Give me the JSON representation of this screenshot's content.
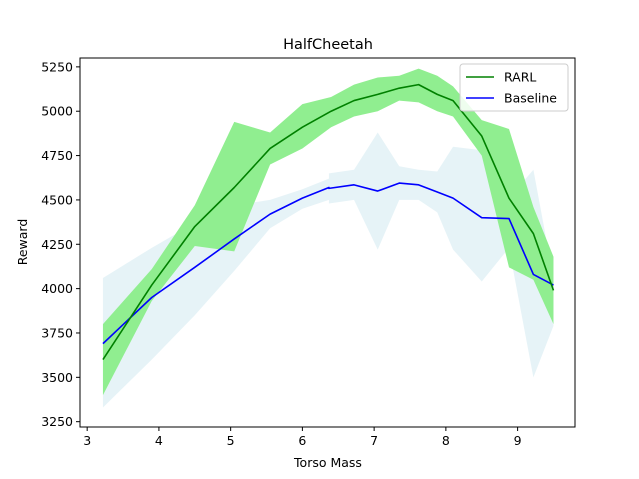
{
  "chart_data": {
    "type": "line",
    "title": "HalfCheetah",
    "xlabel": "Torso Mass",
    "ylabel": "Reward",
    "xlim": [
      2.9,
      9.8
    ],
    "ylim": [
      3220,
      5300
    ],
    "xticks": [
      3,
      4,
      5,
      6,
      7,
      8,
      9
    ],
    "yticks": [
      3250,
      3500,
      3750,
      4000,
      4250,
      4500,
      4750,
      5000,
      5250
    ],
    "grid": false,
    "legend": "top-right",
    "series": [
      {
        "name": "RARL",
        "color": "#008000",
        "band_color": "#90ee90",
        "x": [
          3.22,
          3.9,
          4.5,
          5.05,
          5.55,
          6.0,
          6.4,
          6.72,
          7.05,
          7.35,
          7.62,
          7.88,
          8.1,
          8.5,
          8.88,
          9.22,
          9.5
        ],
        "y": [
          3600,
          4020,
          4350,
          4570,
          4790,
          4910,
          5000,
          5060,
          5095,
          5130,
          5150,
          5095,
          5060,
          4860,
          4510,
          4310,
          3990
        ],
        "upper": [
          3800,
          4110,
          4470,
          4940,
          4880,
          5040,
          5080,
          5150,
          5190,
          5200,
          5240,
          5200,
          5140,
          4950,
          4900,
          4460,
          4180
        ],
        "lower": [
          3400,
          3930,
          4240,
          4210,
          4700,
          4790,
          4910,
          4970,
          5000,
          5060,
          5050,
          5000,
          4970,
          4750,
          4120,
          4050,
          3800
        ]
      },
      {
        "name": "Baseline",
        "color": "#0000ff",
        "band_color": "#add8e6",
        "x": [
          3.22,
          3.9,
          4.5,
          5.05,
          5.55,
          6.0,
          6.37,
          6.37,
          6.72,
          7.05,
          7.35,
          7.62,
          7.88,
          8.1,
          8.5,
          8.88,
          9.22,
          9.5
        ],
        "y": [
          3690,
          3950,
          4120,
          4280,
          4420,
          4510,
          4570,
          4565,
          4585,
          4550,
          4595,
          4585,
          4545,
          4510,
          4400,
          4395,
          4080,
          4020
        ],
        "upper": [
          4060,
          4230,
          4370,
          4470,
          4500,
          4560,
          4620,
          4650,
          4670,
          4880,
          4690,
          4670,
          4660,
          4800,
          4780,
          4510,
          4670,
          4060
        ],
        "lower": [
          3330,
          3600,
          3850,
          4100,
          4340,
          4450,
          4500,
          4480,
          4500,
          4220,
          4500,
          4500,
          4430,
          4220,
          4040,
          4230,
          3500,
          3790
        ]
      }
    ]
  }
}
